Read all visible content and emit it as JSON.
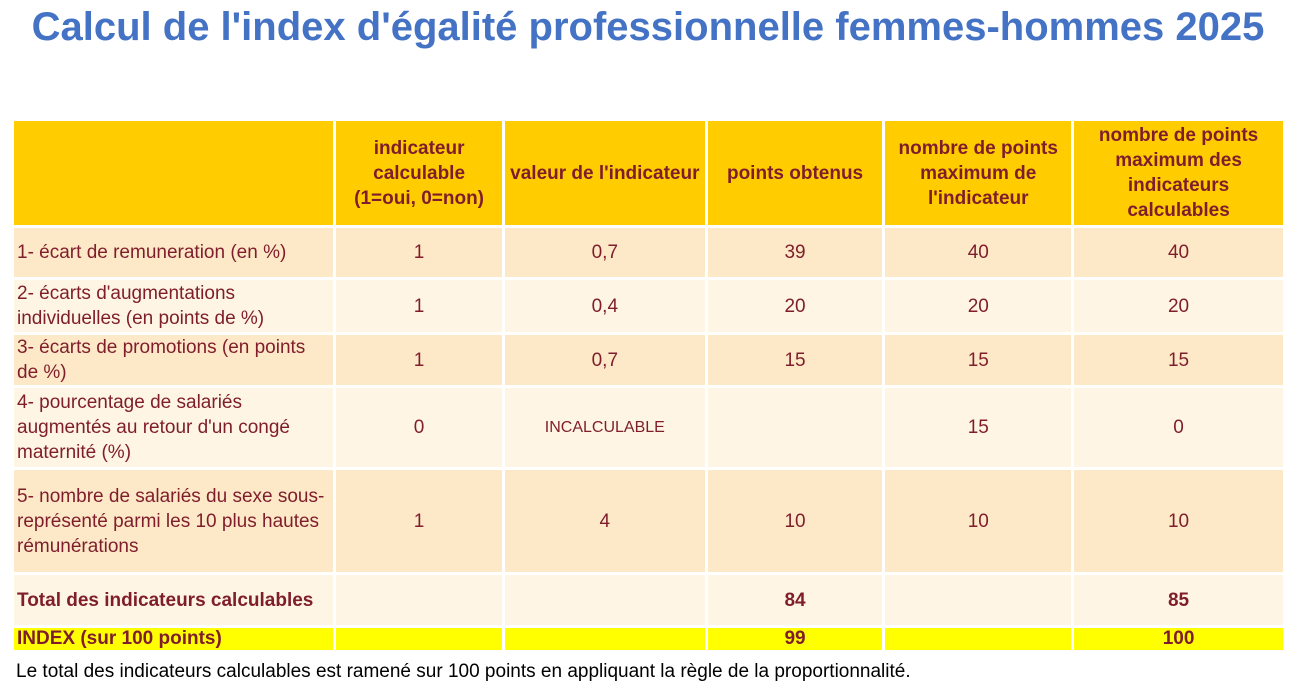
{
  "title": "Calcul de l'index d'égalité professionnelle femmes-hommes 2025",
  "headers": [
    "",
    "indicateur calculable (1=oui, 0=non)",
    "valeur de l'indicateur",
    "points obtenus",
    "nombre de points maximum de l'indicateur",
    "nombre de points maximum des indicateurs calculables"
  ],
  "rows": [
    {
      "label": "1- écart de remuneration (en %)",
      "calc": "1",
      "value": "0,7",
      "points": "39",
      "max": "40",
      "max_calc": "40"
    },
    {
      "label": "2- écarts d'augmentations individuelles (en points de %)",
      "calc": "1",
      "value": "0,4",
      "points": "20",
      "max": "20",
      "max_calc": "20"
    },
    {
      "label": "3- écarts de promotions (en points de %)",
      "calc": "1",
      "value": "0,7",
      "points": "15",
      "max": "15",
      "max_calc": "15"
    },
    {
      "label": "4- pourcentage de salariés augmentés au retour d'un congé maternité (%)",
      "calc": "0",
      "value": "INCALCULABLE",
      "points": "",
      "max": "15",
      "max_calc": "0"
    },
    {
      "label": "5- nombre de salariés du sexe sous-représenté parmi les 10 plus hautes rémunérations",
      "calc": "1",
      "value": "4",
      "points": "10",
      "max": "10",
      "max_calc": "10"
    }
  ],
  "total": {
    "label": "Total des indicateurs calculables",
    "points": "84",
    "max_calc": "85"
  },
  "index": {
    "label": "INDEX (sur 100 points)",
    "points": "99",
    "max_calc": "100"
  },
  "footnote": "Le total des indicateurs calculables est ramené sur 100 points en appliquant la règle de la proportionnalité."
}
